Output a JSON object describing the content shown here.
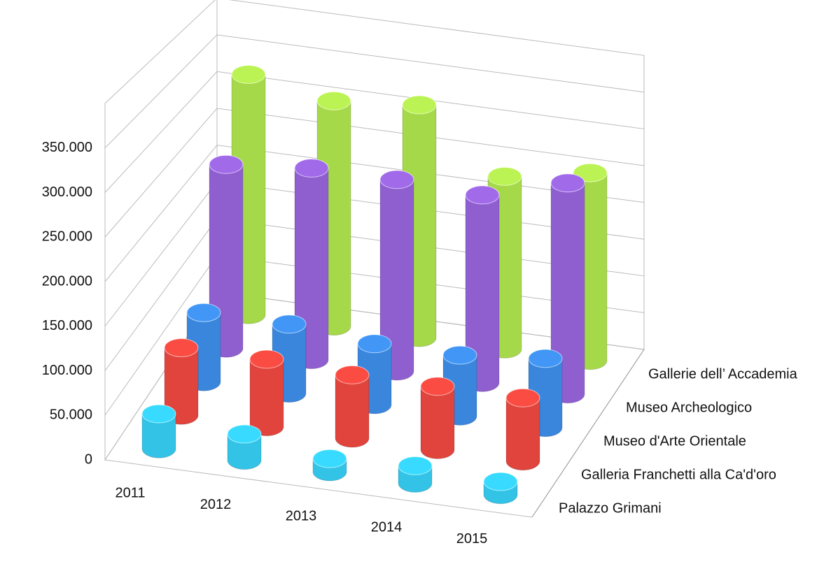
{
  "chart_data": {
    "type": "bar3d",
    "categories": [
      "2011",
      "2012",
      "2013",
      "2014",
      "2015"
    ],
    "series": [
      {
        "name": "Palazzo Grimani",
        "color": "#33c3e6",
        "values": [
          40000,
          30000,
          15000,
          20000,
          15000
        ]
      },
      {
        "name": "Galleria Franchetti alla Ca'd'oro",
        "color": "#e0443c",
        "values": [
          80000,
          80000,
          75000,
          75000,
          75000
        ]
      },
      {
        "name": "Museo d'Arte Orientale",
        "color": "#3a86dc",
        "values": [
          85000,
          85000,
          75000,
          75000,
          85000
        ]
      },
      {
        "name": "Museo Archeologico",
        "color": "#8f5fd0",
        "values": [
          235000,
          245000,
          245000,
          240000,
          270000
        ]
      },
      {
        "name": "Gallerie dell’ Accademia",
        "color": "#a6d94a",
        "values": [
          320000,
          300000,
          310000,
          230000,
          250000
        ]
      }
    ],
    "ylim": [
      0,
      400000
    ],
    "yticks": [
      0,
      {
        "value": 50000,
        "label": "50.000"
      },
      {
        "value": 100000,
        "label": "100.000"
      },
      {
        "value": 150000,
        "label": "150.000"
      },
      {
        "value": 200000,
        "label": "200.000"
      },
      {
        "value": 250000,
        "label": "250.000"
      },
      {
        "value": 300000,
        "label": "300.000"
      },
      {
        "value": 350000,
        "label": "350.000"
      }
    ],
    "grid": true
  }
}
